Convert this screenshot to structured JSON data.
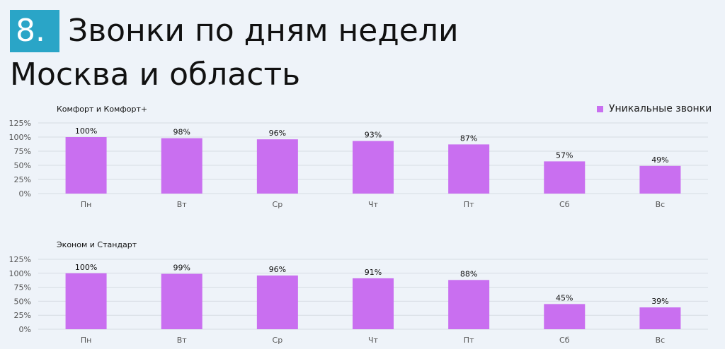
{
  "header": {
    "number": "8.",
    "title_line1": "Звонки по дням недели",
    "title_line2": "Москва и область"
  },
  "legend": {
    "label": "Уникальные звонки",
    "color": "#c96ff0"
  },
  "chart_data": [
    {
      "type": "bar",
      "title": "Комфорт и Комфорт+",
      "categories": [
        "Пн",
        "Вт",
        "Ср",
        "Чт",
        "Пт",
        "Сб",
        "Вс"
      ],
      "series": [
        {
          "name": "Уникальные звонки",
          "values": [
            100,
            98,
            96,
            93,
            87,
            57,
            49
          ]
        }
      ],
      "value_labels": [
        "100%",
        "98%",
        "96%",
        "93%",
        "87%",
        "57%",
        "49%"
      ],
      "yticks": [
        "0%",
        "25%",
        "50%",
        "75%",
        "100%",
        "125%"
      ],
      "ylim": [
        0,
        125
      ],
      "grid": true,
      "legend_position": "top-right"
    },
    {
      "type": "bar",
      "title": "Эконом и Стандарт",
      "categories": [
        "Пн",
        "Вт",
        "Ср",
        "Чт",
        "Пт",
        "Сб",
        "Вс"
      ],
      "series": [
        {
          "name": "Уникальные звонки",
          "values": [
            100,
            99,
            96,
            91,
            88,
            45,
            39
          ]
        }
      ],
      "value_labels": [
        "100%",
        "99%",
        "96%",
        "91%",
        "88%",
        "45%",
        "39%"
      ],
      "yticks": [
        "0%",
        "25%",
        "50%",
        "75%",
        "100%",
        "125%"
      ],
      "ylim": [
        0,
        125
      ],
      "grid": true
    }
  ]
}
